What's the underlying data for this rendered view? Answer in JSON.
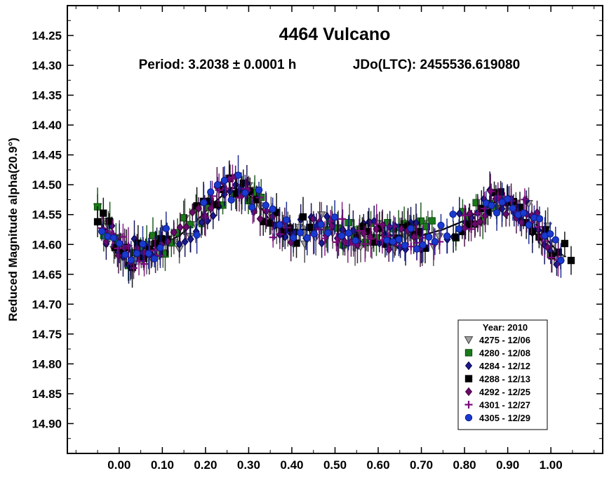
{
  "chart_data": {
    "type": "scatter",
    "title": "4464 Vulcano",
    "subtitle_period": "Period: 3.2038 ± 0.0001 h",
    "subtitle_epoch": "JDo(LTC): 2455536.619080",
    "ylabel": "Reduced Magnitude alpha(20.9°)",
    "xlabel": "",
    "xlim": [
      -0.12,
      1.12
    ],
    "ylim": [
      14.95,
      14.2
    ],
    "y_inverted": true,
    "x_ticks": [
      "0.00",
      "0.10",
      "0.20",
      "0.30",
      "0.40",
      "0.50",
      "0.60",
      "0.70",
      "0.80",
      "0.90",
      "1.00"
    ],
    "y_ticks": [
      "14.25",
      "14.30",
      "14.35",
      "14.40",
      "14.45",
      "14.50",
      "14.55",
      "14.60",
      "14.65",
      "14.70",
      "14.75",
      "14.80",
      "14.85",
      "14.90"
    ],
    "grid": false,
    "legend_position": "bottom-right",
    "legend_title": "Year: 2010",
    "series": [
      {
        "name": "4275 - 12/06",
        "marker": "triangle-down",
        "color": "#a0a0a0",
        "stroke": "#404040"
      },
      {
        "name": "4280 - 12/08",
        "marker": "square",
        "color": "#1a7a1a",
        "stroke": "#0a4a0a"
      },
      {
        "name": "4284 - 12/12",
        "marker": "diamond",
        "color": "#1a1a8a",
        "stroke": "#00004a"
      },
      {
        "name": "4288 - 12/13",
        "marker": "square",
        "color": "#000000",
        "stroke": "#000000"
      },
      {
        "name": "4292 - 12/25",
        "marker": "diamond",
        "color": "#6a0a6a",
        "stroke": "#3a003a"
      },
      {
        "name": "4301 - 12/27",
        "marker": "plus",
        "color": "#7a0a7a",
        "stroke": "#7a0a7a"
      },
      {
        "name": "4305 - 12/29",
        "marker": "circle",
        "color": "#1a3acf",
        "stroke": "#0a1a8a"
      }
    ],
    "fit_curve": {
      "x": [
        -0.05,
        0.0,
        0.03,
        0.06,
        0.1,
        0.14,
        0.18,
        0.22,
        0.26,
        0.29,
        0.32,
        0.35,
        0.38,
        0.42,
        0.46,
        0.5,
        0.55,
        0.6,
        0.65,
        0.7,
        0.75,
        0.8,
        0.84,
        0.88,
        0.91,
        0.94,
        0.97,
        1.0,
        1.03
      ],
      "y": [
        14.56,
        14.6,
        14.615,
        14.615,
        14.6,
        14.585,
        14.56,
        14.53,
        14.505,
        14.51,
        14.53,
        14.56,
        14.575,
        14.575,
        14.575,
        14.575,
        14.58,
        14.585,
        14.585,
        14.585,
        14.575,
        14.56,
        14.54,
        14.525,
        14.525,
        14.545,
        14.57,
        14.6,
        14.62
      ]
    }
  }
}
